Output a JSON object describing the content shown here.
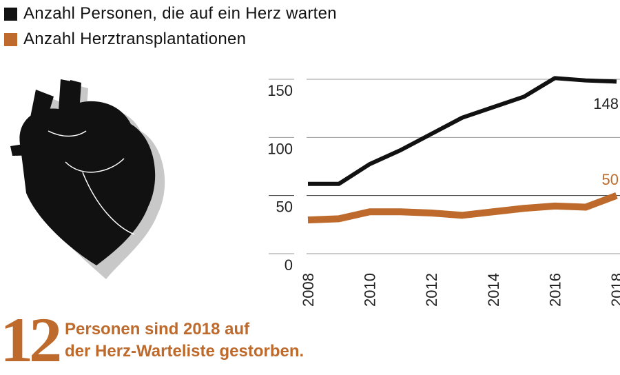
{
  "legend": [
    {
      "label": "Anzahl Personen, die auf ein Herz warten",
      "color": "#111111"
    },
    {
      "label": "Anzahl Herztransplantationen",
      "color": "#bd6a2c"
    }
  ],
  "chart_data": {
    "type": "line",
    "x": [
      2008,
      2009,
      2010,
      2011,
      2012,
      2013,
      2014,
      2015,
      2016,
      2017,
      2018
    ],
    "xticks": [
      "2008",
      "2010",
      "2012",
      "2014",
      "2016",
      "2018"
    ],
    "yticks": [
      "0",
      "50",
      "100",
      "150"
    ],
    "ylim": [
      0,
      150
    ],
    "grid": true,
    "series": [
      {
        "name": "Anzahl Personen, die auf ein Herz warten",
        "color": "#111111",
        "values": [
          60,
          60,
          77,
          89,
          103,
          117,
          126,
          135,
          151,
          149,
          148
        ],
        "end_label": "148"
      },
      {
        "name": "Anzahl Herztransplantationen",
        "color": "#bd6a2c",
        "values": [
          29,
          30,
          36,
          36,
          35,
          33,
          36,
          39,
          41,
          40,
          50
        ],
        "end_label": "50"
      }
    ]
  },
  "footer": {
    "number": "12",
    "line1": "Personen sind 2018 auf",
    "line2": "der Herz-Warteliste gestorben."
  },
  "illustration": {
    "icon": "heart-anatomy-icon"
  }
}
